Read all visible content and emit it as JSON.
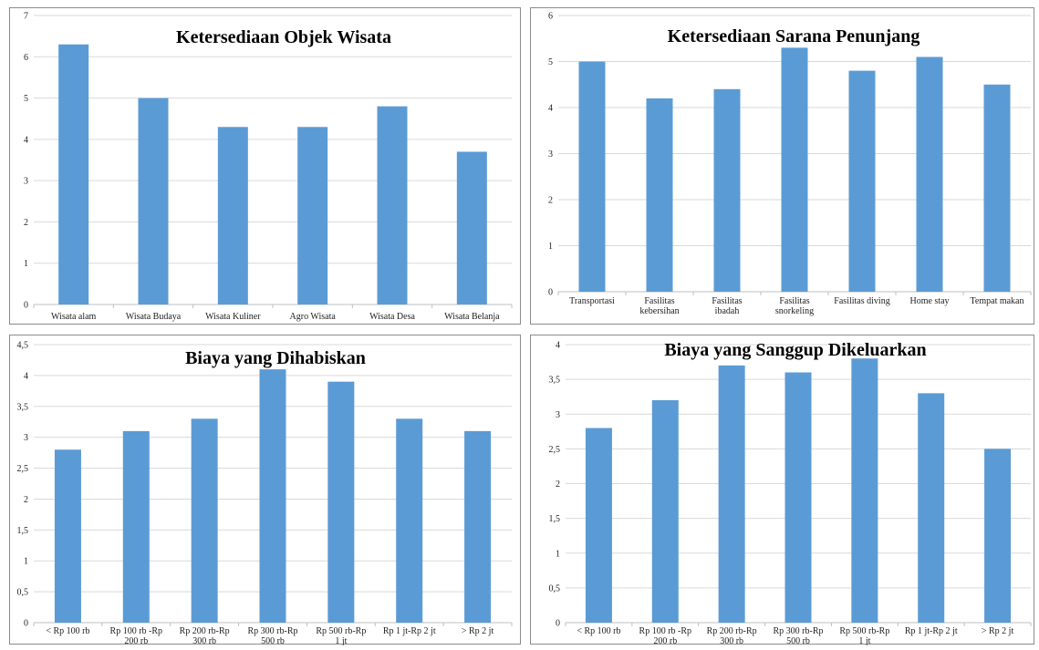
{
  "chart_data": [
    {
      "type": "bar",
      "title": "Ketersediaan Objek Wisata",
      "categories": [
        [
          "Wisata alam"
        ],
        [
          "Wisata Budaya"
        ],
        [
          "Wisata Kuliner"
        ],
        [
          "Agro Wisata"
        ],
        [
          "Wisata Desa"
        ],
        [
          "Wisata Belanja"
        ]
      ],
      "values": [
        6.3,
        5.0,
        4.3,
        4.3,
        4.8,
        3.7
      ],
      "ylim": [
        0,
        7
      ],
      "yticks": [
        "0",
        "1",
        "2",
        "3",
        "4",
        "5",
        "6",
        "7"
      ],
      "grid": true,
      "bar_color": "#5b9bd5"
    },
    {
      "type": "bar",
      "title": "Ketersediaan Sarana Penunjang",
      "categories": [
        [
          "Transportasi"
        ],
        [
          "Fasilitas",
          "kebersihan"
        ],
        [
          "Fasilitas",
          "ibadah"
        ],
        [
          "Fasilitas",
          "snorkeling"
        ],
        [
          "Fasilitas diving"
        ],
        [
          "Home stay"
        ],
        [
          "Tempat makan"
        ]
      ],
      "values": [
        5.0,
        4.2,
        4.4,
        5.3,
        4.8,
        5.1,
        4.5
      ],
      "ylim": [
        0,
        6
      ],
      "yticks": [
        "0",
        "1",
        "2",
        "3",
        "4",
        "5",
        "6"
      ],
      "grid": true,
      "bar_color": "#5b9bd5"
    },
    {
      "type": "bar",
      "title": "Biaya yang Dihabiskan",
      "categories": [
        [
          "< Rp 100 rb"
        ],
        [
          "Rp 100 rb -Rp",
          "200 rb"
        ],
        [
          "Rp 200 rb-Rp",
          "300 rb"
        ],
        [
          "Rp 300 rb-Rp",
          "500 rb"
        ],
        [
          "Rp 500 rb-Rp",
          "1 jt"
        ],
        [
          "Rp 1 jt-Rp 2 jt"
        ],
        [
          "> Rp 2 jt"
        ]
      ],
      "values": [
        2.8,
        3.1,
        3.3,
        4.1,
        3.9,
        3.3,
        3.1
      ],
      "ylim": [
        0,
        4.5
      ],
      "yticks": [
        "0",
        "0,5",
        "1",
        "1,5",
        "2",
        "2,5",
        "3",
        "3,5",
        "4",
        "4,5"
      ],
      "grid": true,
      "bar_color": "#5b9bd5"
    },
    {
      "type": "bar",
      "title": "Biaya yang Sanggup Dikeluarkan",
      "categories": [
        [
          "< Rp 100 rb"
        ],
        [
          "Rp 100 rb -Rp",
          "200 rb"
        ],
        [
          "Rp 200 rb-Rp",
          "300 rb"
        ],
        [
          "Rp 300 rb-Rp",
          "500 rb"
        ],
        [
          "Rp 500 rb-Rp",
          "1 jt"
        ],
        [
          "Rp 1 jt-Rp 2 jt"
        ],
        [
          "> Rp 2 jt"
        ]
      ],
      "values": [
        2.8,
        3.2,
        3.7,
        3.6,
        3.8,
        3.3,
        2.5
      ],
      "ylim": [
        0,
        4
      ],
      "yticks": [
        "0",
        "0,5",
        "1",
        "1,5",
        "2",
        "2,5",
        "3",
        "3,5",
        "4"
      ],
      "grid": true,
      "bar_color": "#5b9bd5"
    }
  ]
}
